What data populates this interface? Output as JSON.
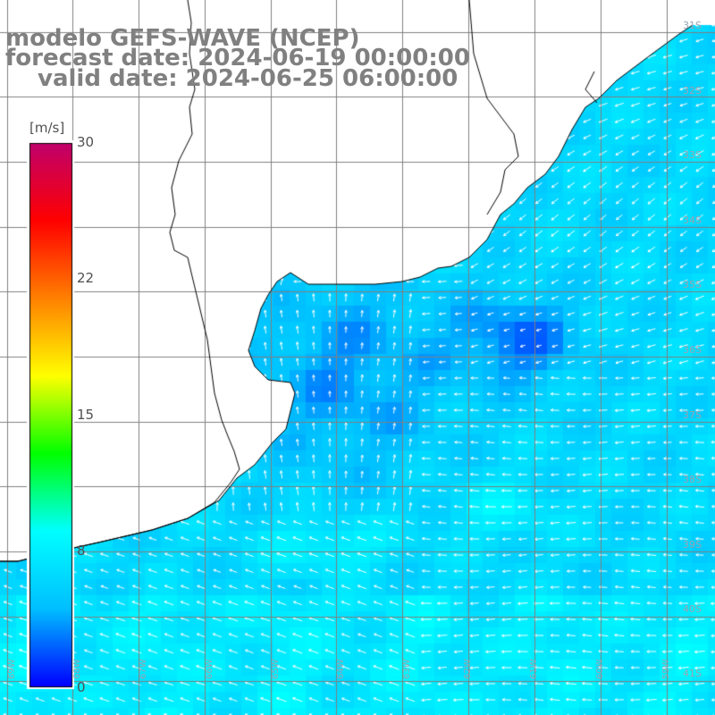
{
  "title": {
    "line1": "modelo GEFS-WAVE (NCEP)",
    "line2": "forecast date: 2024-06-19 00:00:00",
    "line3": "valid date: 2024-06-25 06:00:00"
  },
  "colorbar": {
    "unit": "[m/s]",
    "ticks": [
      "30",
      "22",
      "15",
      "8",
      "0"
    ],
    "tick_values": [
      30,
      22,
      15,
      8,
      0
    ],
    "range": [
      0,
      30
    ],
    "colors": [
      "#0000ff",
      "#00bfff",
      "#00ffff",
      "#00ff00",
      "#ffff00",
      "#ff8000",
      "#ff0000",
      "#c0006c"
    ]
  },
  "map": {
    "lat_labels": [
      "31S",
      "32S",
      "33S",
      "34S",
      "35S",
      "36S",
      "37S",
      "38S",
      "39S",
      "40S",
      "41S"
    ],
    "lat_values": [
      -31,
      -32,
      -33,
      -34,
      -35,
      -36,
      -37,
      -38,
      -39,
      -40,
      -41
    ],
    "lon_labels": [
      "69W",
      "68W",
      "67W",
      "66W",
      "65W",
      "64W",
      "63W",
      "62W",
      "61W",
      "60W",
      "59W"
    ],
    "lon_values": [
      -69,
      -68,
      -67,
      -66,
      -65,
      -64,
      -63,
      -62,
      -61,
      -60,
      -59
    ],
    "land_color": "#ffffff",
    "grid_color": "#808080",
    "coast_color": "#000000",
    "arrow_color": "#ffffff"
  }
}
